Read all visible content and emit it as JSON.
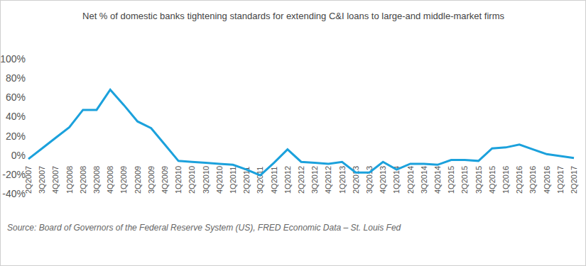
{
  "chart_data": {
    "type": "line",
    "title": "Net % of domestic banks tightening standards for extending C&I loans to large-and middle-market firms",
    "source": "Source: Board of Governors of the Federal Reserve System (US), FRED Economic Data – St. Louis Fed",
    "categories": [
      "2Q2007",
      "3Q2007",
      "4Q2007",
      "1Q2008",
      "2Q2008",
      "3Q2008",
      "4Q2008",
      "1Q2009",
      "2Q2009",
      "3Q2009",
      "4Q2009",
      "1Q2010",
      "2Q2010",
      "3Q2010",
      "4Q2010",
      "1Q2011",
      "2Q2011",
      "3Q2011",
      "4Q2011",
      "1Q2012",
      "2Q2012",
      "3Q2012",
      "4Q2012",
      "1Q2013",
      "2Q2013",
      "3Q2013",
      "4Q2013",
      "1Q2014",
      "2Q2014",
      "3Q2014",
      "4Q2014",
      "1Q2015",
      "2Q2015",
      "3Q2015",
      "4Q2015",
      "1Q2016",
      "2Q2016",
      "3Q2016",
      "4Q2016",
      "1Q2017",
      "2Q2017"
    ],
    "values": [
      -4,
      7,
      18,
      29,
      47,
      47,
      68,
      52,
      35,
      28,
      11,
      -6,
      -7,
      -8,
      -9,
      -10,
      -15,
      -21,
      -8,
      6,
      -7,
      -8,
      -9,
      -7,
      -18,
      -18,
      -7,
      -15,
      -9,
      -9,
      -10,
      -5,
      -5,
      -6,
      7,
      8,
      11,
      6,
      1,
      -1,
      -3
    ],
    "color": "#1ba1dc",
    "ylim": [
      -40,
      100
    ],
    "yticks": [
      {
        "value": -40,
        "label": "-40%"
      },
      {
        "value": -20,
        "label": "-20%"
      },
      {
        "value": 0,
        "label": "0%"
      },
      {
        "value": 20,
        "label": "20%"
      },
      {
        "value": 40,
        "label": "40%"
      },
      {
        "value": 60,
        "label": "60%"
      },
      {
        "value": 80,
        "label": "80%"
      },
      {
        "value": 100,
        "label": "100%"
      }
    ],
    "grid": false
  }
}
